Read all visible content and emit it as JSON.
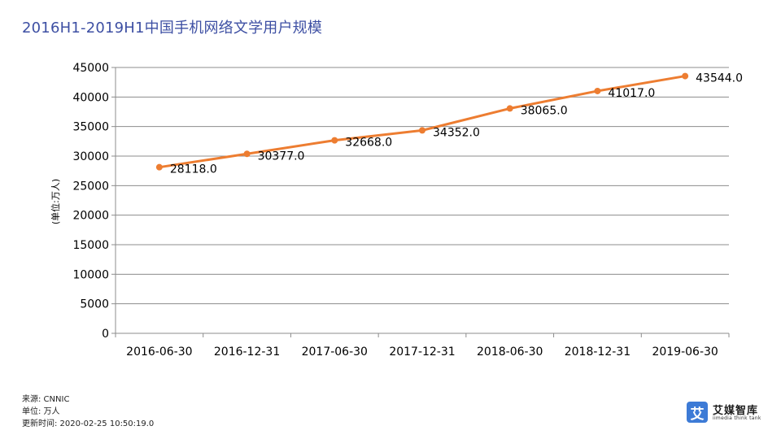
{
  "header": {
    "title": "2016H1-2019H1中国手机网络文学用户规模"
  },
  "chart_data": {
    "type": "line",
    "title": "2016H1-2019H1中国手机网络文学用户规模",
    "xlabel": "",
    "ylabel": "(单位:万人)",
    "categories": [
      "2016-06-30",
      "2016-12-31",
      "2017-06-30",
      "2017-12-31",
      "2018-06-30",
      "2018-12-31",
      "2019-06-30"
    ],
    "series": [
      {
        "values": [
          28118.0,
          30377.0,
          32668.0,
          34352.0,
          38065.0,
          41017.0,
          43544.0
        ],
        "labels": [
          "28118.0",
          "30377.0",
          "32668.0",
          "34352.0",
          "38065.0",
          "41017.0",
          "43544.0"
        ],
        "color": "#ed7d31"
      }
    ],
    "ylim": [
      0,
      45000
    ],
    "yticks": [
      "0",
      "5000",
      "10000",
      "15000",
      "20000",
      "25000",
      "30000",
      "35000",
      "40000",
      "45000"
    ],
    "grid": true,
    "legend": "none"
  },
  "footer": {
    "source": "来源: CNNIC",
    "unit": "单位: 万人",
    "updated": "更新时间: 2020-02-25 10:50:19.0"
  },
  "logo": {
    "mark": "艾",
    "name_cn": "艾媒智库",
    "name_en": "iimedia think tank",
    "brand_color": "#3d7bd6"
  }
}
